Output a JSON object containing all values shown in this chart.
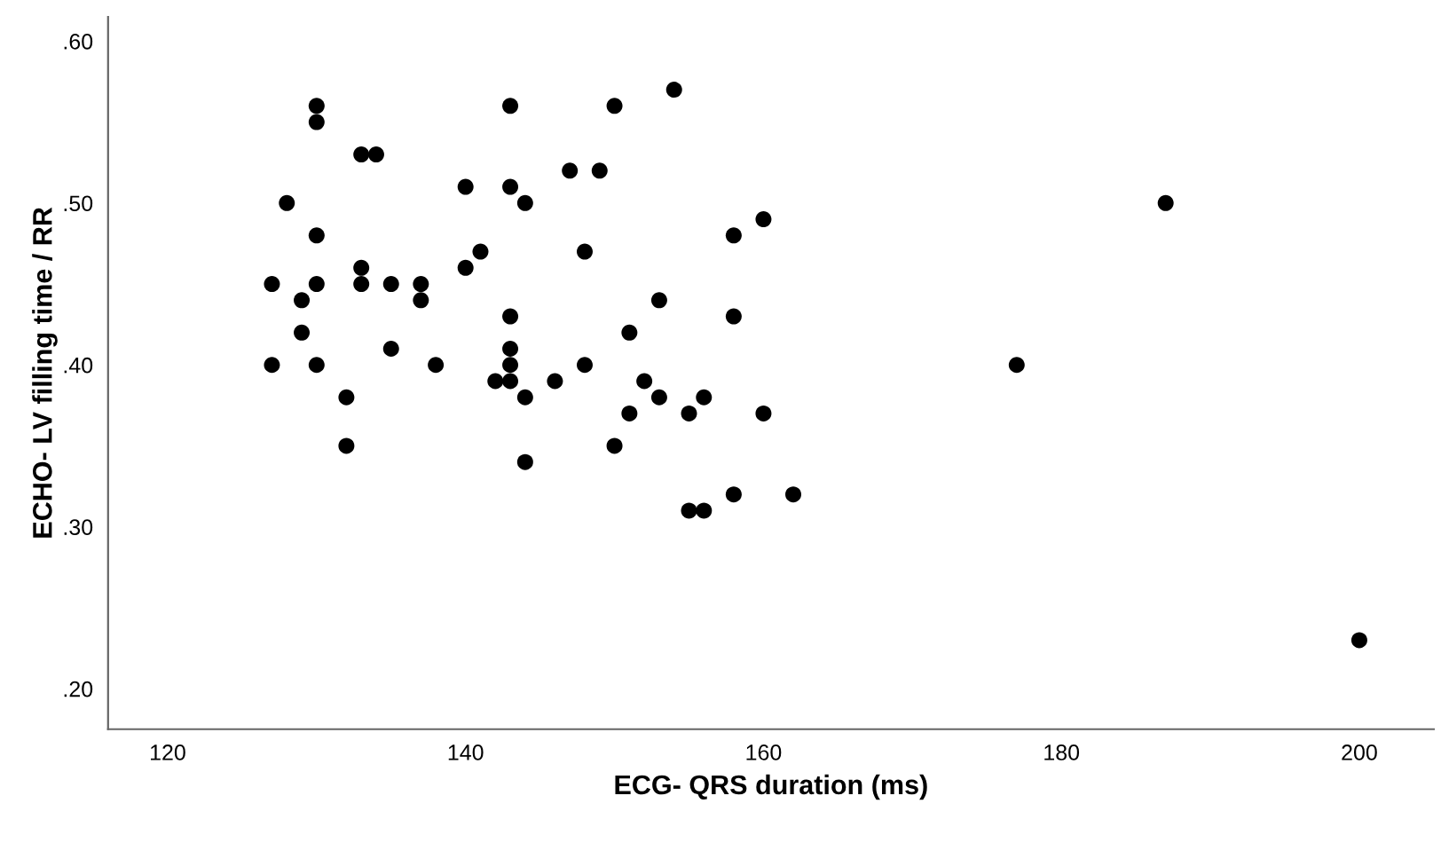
{
  "chart_data": {
    "type": "scatter",
    "xlabel": "ECG- QRS duration (ms)",
    "ylabel": "ECHO- LV filling time / RR",
    "x": [
      130,
      130,
      133,
      134,
      143,
      150,
      154,
      140,
      143,
      144,
      147,
      149,
      128,
      130,
      141,
      148,
      140,
      133,
      127,
      130,
      133,
      135,
      137,
      137,
      129,
      129,
      143,
      135,
      143,
      127,
      130,
      138,
      143,
      148,
      142,
      143,
      146,
      151,
      132,
      132,
      144,
      144,
      150,
      151,
      160,
      158,
      153,
      158,
      177,
      152,
      153,
      155,
      156,
      160,
      155,
      156,
      158,
      162,
      187,
      200
    ],
    "values": [
      0.56,
      0.55,
      0.53,
      0.53,
      0.56,
      0.56,
      0.57,
      0.51,
      0.51,
      0.5,
      0.52,
      0.52,
      0.5,
      0.48,
      0.47,
      0.47,
      0.46,
      0.46,
      0.45,
      0.45,
      0.45,
      0.45,
      0.45,
      0.44,
      0.44,
      0.42,
      0.43,
      0.41,
      0.41,
      0.4,
      0.4,
      0.4,
      0.4,
      0.4,
      0.39,
      0.39,
      0.39,
      0.42,
      0.38,
      0.35,
      0.38,
      0.34,
      0.35,
      0.37,
      0.49,
      0.48,
      0.44,
      0.43,
      0.4,
      0.39,
      0.38,
      0.37,
      0.38,
      0.37,
      0.31,
      0.31,
      0.32,
      0.32,
      0.5,
      0.23
    ],
    "color": "#000000",
    "marker": "circle",
    "grid": false,
    "legend": false,
    "xlim": [
      116,
      205
    ],
    "xticks": [
      120,
      140,
      160,
      180,
      200
    ],
    "ylim": [
      0.175,
      0.615
    ],
    "yticks": [
      {
        "value": 0.2,
        "label": ".20"
      },
      {
        "value": 0.3,
        "label": ".30"
      },
      {
        "value": 0.4,
        "label": ".40"
      },
      {
        "value": 0.5,
        "label": ".50"
      },
      {
        "value": 0.6,
        "label": ".60"
      }
    ]
  }
}
